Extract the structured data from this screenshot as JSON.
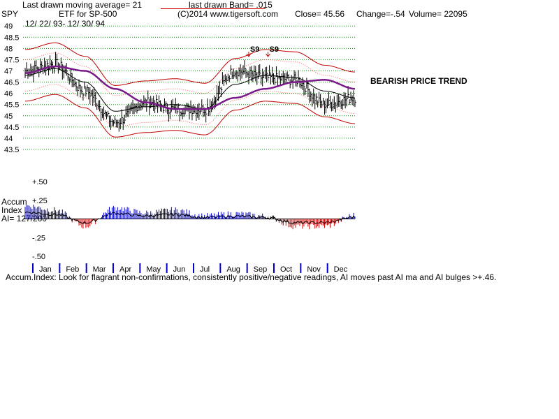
{
  "header": {
    "ma_label": "Last drawn moving average= 21",
    "band_label": "last drawn Band= .015",
    "ticker": "SPY",
    "description": "ETF for SP-500",
    "copyright": "(C)2014 www.tigersoft.com",
    "close": "Close=  45.56",
    "change": "Change=-.54",
    "volume": "Volume= 22095",
    "date_range": "12/ 22/ 93-  12/ 30/ 94"
  },
  "annotations": {
    "trend": "BEARISH PRICE TREND",
    "signal_1": "S9",
    "signal_2": "S9"
  },
  "accum": {
    "title_1": "Accum",
    "title_2": "Index",
    "ai_label": "AI= 127/200"
  },
  "footer": {
    "note": "Accum.Index: Look for flagrant non-confirmations, consistently positive/negative readings, AI moves past AI ma and AI bulges >+.46."
  },
  "colors": {
    "price_bars": "#000000",
    "ma21": "#000000",
    "ma50": "#7a1a8a",
    "bands_inner": "#ff6060",
    "bands_outer": "#c00000",
    "grid": "#00a000",
    "accum_pos": "#0000cc",
    "accum_neg": "#cc0000",
    "signal_arrow": "#d00000"
  },
  "chart_data": [
    {
      "type": "line",
      "panel": "price",
      "ylim": [
        43.25,
        49.1
      ],
      "yticks": [
        "49",
        "48.5",
        "48",
        "47.5",
        "47",
        "46.5",
        "46",
        "45.5",
        "45",
        "44.5",
        "44",
        "43.5"
      ],
      "xticks": [
        "Jan",
        "Feb",
        "Mar",
        "Apr",
        "May",
        "Jun",
        "Jul",
        "Aug",
        "Sep",
        "Oct",
        "Nov",
        "Dec"
      ],
      "x": [
        "Jan",
        "Feb",
        "Mar",
        "Apr",
        "May",
        "Jun",
        "Jul",
        "Aug",
        "Sep",
        "Oct",
        "Nov",
        "Dec"
      ],
      "series": [
        {
          "name": "SPY",
          "values": [
            47.0,
            47.3,
            46.1,
            44.7,
            45.6,
            45.3,
            45.3,
            47.0,
            46.7,
            46.6,
            45.5,
            45.8
          ]
        },
        {
          "name": "21-day MA",
          "values": [
            46.8,
            47.1,
            46.5,
            45.2,
            45.4,
            45.5,
            45.3,
            46.4,
            46.8,
            46.7,
            46.1,
            45.8
          ]
        },
        {
          "name": "50-day MA",
          "values": [
            46.9,
            47.2,
            47.0,
            46.2,
            45.6,
            45.3,
            45.3,
            45.8,
            46.2,
            46.5,
            46.6,
            46.2
          ]
        }
      ],
      "grid": true
    },
    {
      "type": "bar",
      "panel": "accumulation",
      "ylim": [
        -0.5,
        0.5
      ],
      "yticks": [
        "+.50",
        "+.25",
        "-.25",
        "-.50"
      ],
      "categories": [
        "Jan",
        "Feb",
        "Mar",
        "Apr",
        "May",
        "Jun",
        "Jul",
        "Aug",
        "Sep",
        "Oct",
        "Nov",
        "Dec"
      ],
      "values": [
        0.18,
        0.12,
        -0.1,
        0.15,
        0.08,
        0.12,
        0.04,
        0.07,
        0.04,
        -0.1,
        -0.1,
        0.05
      ]
    }
  ]
}
